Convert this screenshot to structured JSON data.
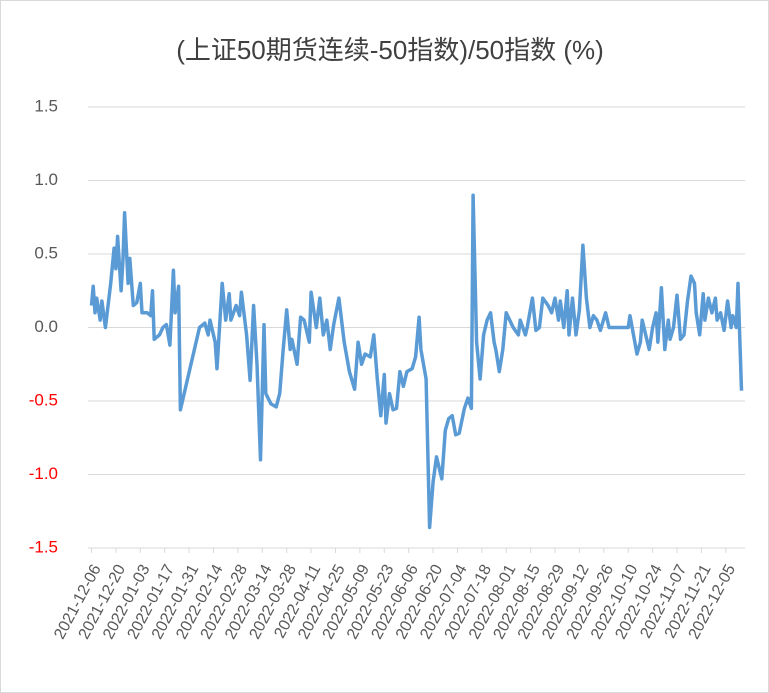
{
  "chart_data": {
    "type": "line",
    "title": "(上证50期货连续-50指数)/50指数 (%)",
    "x": [
      "2021-12-06",
      "2021-12-07",
      "2021-12-08",
      "2021-12-09",
      "2021-12-11",
      "2021-12-12",
      "2021-12-14",
      "2021-12-17",
      "2021-12-19",
      "2021-12-20",
      "2021-12-21",
      "2021-12-23",
      "2021-12-24",
      "2021-12-25",
      "2021-12-27",
      "2021-12-28",
      "2021-12-30",
      "2022-01-01",
      "2022-01-03",
      "2022-01-04",
      "2022-01-07",
      "2022-01-09",
      "2022-01-10",
      "2022-01-11",
      "2022-01-14",
      "2022-01-16",
      "2022-01-18",
      "2022-01-20",
      "2022-01-22",
      "2022-01-23",
      "2022-01-25",
      "2022-01-26",
      "2022-02-06",
      "2022-02-09",
      "2022-02-11",
      "2022-02-12",
      "2022-02-15",
      "2022-02-16",
      "2022-02-19",
      "2022-02-21",
      "2022-02-23",
      "2022-02-24",
      "2022-02-27",
      "2022-03-01",
      "2022-03-02",
      "2022-03-05",
      "2022-03-07",
      "2022-03-09",
      "2022-03-11",
      "2022-03-13",
      "2022-03-15",
      "2022-03-16",
      "2022-03-19",
      "2022-03-22",
      "2022-03-24",
      "2022-03-26",
      "2022-03-28",
      "2022-03-30",
      "2022-03-31",
      "2022-04-03",
      "2022-04-05",
      "2022-04-07",
      "2022-04-10",
      "2022-04-11",
      "2022-04-14",
      "2022-04-16",
      "2022-04-18",
      "2022-04-20",
      "2022-04-22",
      "2022-04-24",
      "2022-04-27",
      "2022-04-30",
      "2022-05-03",
      "2022-05-06",
      "2022-05-08",
      "2022-05-10",
      "2022-05-12",
      "2022-05-15",
      "2022-05-17",
      "2022-05-19",
      "2022-05-21",
      "2022-05-23",
      "2022-05-24",
      "2022-05-26",
      "2022-05-28",
      "2022-05-30",
      "2022-06-01",
      "2022-06-03",
      "2022-06-05",
      "2022-06-08",
      "2022-06-10",
      "2022-06-12",
      "2022-06-13",
      "2022-06-16",
      "2022-06-18",
      "2022-06-20",
      "2022-06-22",
      "2022-06-25",
      "2022-06-27",
      "2022-06-29",
      "2022-07-01",
      "2022-07-03",
      "2022-07-05",
      "2022-07-08",
      "2022-07-10",
      "2022-07-12",
      "2022-07-13",
      "2022-07-15",
      "2022-07-17",
      "2022-07-19",
      "2022-07-21",
      "2022-07-23",
      "2022-07-25",
      "2022-07-26",
      "2022-07-28",
      "2022-07-30",
      "2022-08-01",
      "2022-08-03",
      "2022-08-05",
      "2022-08-08",
      "2022-08-09",
      "2022-08-12",
      "2022-08-13",
      "2022-08-16",
      "2022-08-18",
      "2022-08-20",
      "2022-08-22",
      "2022-08-25",
      "2022-08-27",
      "2022-08-29",
      "2022-08-31",
      "2022-09-01",
      "2022-09-03",
      "2022-09-05",
      "2022-09-06",
      "2022-09-08",
      "2022-09-10",
      "2022-09-12",
      "2022-09-14",
      "2022-09-16",
      "2022-09-18",
      "2022-09-20",
      "2022-09-22",
      "2022-09-24",
      "2022-09-27",
      "2022-09-29",
      "2022-10-10",
      "2022-10-11",
      "2022-10-13",
      "2022-10-15",
      "2022-10-17",
      "2022-10-18",
      "2022-10-20",
      "2022-10-22",
      "2022-10-24",
      "2022-10-26",
      "2022-10-27",
      "2022-10-29",
      "2022-10-31",
      "2022-11-02",
      "2022-11-03",
      "2022-11-05",
      "2022-11-07",
      "2022-11-09",
      "2022-11-11",
      "2022-11-13",
      "2022-11-15",
      "2022-11-17",
      "2022-11-18",
      "2022-11-20",
      "2022-11-22",
      "2022-11-23",
      "2022-11-25",
      "2022-11-27",
      "2022-11-29",
      "2022-11-30",
      "2022-12-02",
      "2022-12-04",
      "2022-12-06",
      "2022-12-08",
      "2022-12-09",
      "2022-12-11",
      "2022-12-12",
      "2022-12-14"
    ],
    "series": [
      {
        "name": "(上证50期货连续-50指数)/50指数",
        "color": "#5b9bd5",
        "values": [
          0.15,
          0.28,
          0.1,
          0.2,
          0.05,
          0.18,
          0.0,
          0.3,
          0.54,
          0.4,
          0.62,
          0.25,
          0.45,
          0.78,
          0.3,
          0.47,
          0.15,
          0.17,
          0.3,
          0.1,
          0.1,
          0.08,
          0.25,
          -0.08,
          -0.05,
          0.0,
          0.02,
          -0.12,
          0.39,
          0.1,
          0.28,
          -0.56,
          0.0,
          0.03,
          -0.05,
          0.05,
          -0.1,
          -0.28,
          0.3,
          0.05,
          0.23,
          0.05,
          0.15,
          0.08,
          0.24,
          -0.05,
          -0.36,
          0.15,
          -0.25,
          -0.9,
          0.02,
          -0.45,
          -0.52,
          -0.54,
          -0.45,
          -0.15,
          0.12,
          -0.15,
          -0.08,
          -0.25,
          0.07,
          0.05,
          -0.1,
          0.24,
          0.0,
          0.2,
          -0.05,
          0.05,
          -0.15,
          0.02,
          0.2,
          -0.1,
          -0.3,
          -0.42,
          -0.1,
          -0.25,
          -0.18,
          -0.2,
          -0.05,
          -0.35,
          -0.6,
          -0.32,
          -0.65,
          -0.45,
          -0.56,
          -0.55,
          -0.3,
          -0.4,
          -0.3,
          -0.28,
          -0.2,
          0.07,
          -0.15,
          -0.35,
          -1.36,
          -1.05,
          -0.88,
          -1.03,
          -0.7,
          -0.62,
          -0.6,
          -0.73,
          -0.72,
          -0.55,
          -0.48,
          -0.55,
          0.9,
          -0.1,
          -0.35,
          -0.05,
          0.05,
          0.1,
          -0.1,
          -0.15,
          -0.3,
          -0.15,
          0.1,
          0.05,
          0.0,
          -0.05,
          0.05,
          -0.05,
          0.0,
          0.2,
          -0.02,
          0.0,
          0.2,
          0.15,
          0.1,
          0.2,
          0.05,
          0.18,
          0.0,
          0.25,
          -0.05,
          0.2,
          -0.05,
          0.12,
          0.56,
          0.2,
          0.0,
          0.08,
          0.05,
          -0.02,
          0.1,
          0.0,
          0.0,
          0.08,
          -0.05,
          -0.18,
          -0.1,
          0.05,
          -0.05,
          -0.15,
          0.0,
          0.1,
          -0.1,
          0.27,
          -0.15,
          0.05,
          -0.08,
          0.0,
          0.22,
          -0.08,
          -0.05,
          0.18,
          0.35,
          0.3,
          0.1,
          -0.05,
          0.23,
          0.05,
          0.2,
          0.1,
          0.2,
          0.05,
          0.1,
          -0.02,
          0.18,
          0.0,
          0.08,
          0.0,
          0.3,
          -0.43
        ]
      }
    ],
    "xlim": [
      "2021-12-04",
      "2022-12-16"
    ],
    "xticks": [
      "2021-12-06",
      "2021-12-20",
      "2022-01-03",
      "2022-01-17",
      "2022-01-31",
      "2022-02-14",
      "2022-02-28",
      "2022-03-14",
      "2022-03-28",
      "2022-04-11",
      "2022-04-25",
      "2022-05-09",
      "2022-05-23",
      "2022-06-06",
      "2022-06-20",
      "2022-07-04",
      "2022-07-18",
      "2022-08-01",
      "2022-08-15",
      "2022-08-29",
      "2022-09-12",
      "2022-09-26",
      "2022-10-10",
      "2022-10-24",
      "2022-11-07",
      "2022-11-21",
      "2022-12-05"
    ],
    "ylim": [
      -1.5,
      1.5
    ],
    "yticks": [
      -1.5,
      {
        "value": -1,
        "label": "-1.0"
      },
      -0.5,
      {
        "value": 0,
        "label": "0.0"
      },
      0.5,
      {
        "value": 1,
        "label": "1.0"
      },
      1.5
    ],
    "grid": true,
    "tick_label_color": "#595959",
    "negative_tick_color": "#ff0000"
  }
}
